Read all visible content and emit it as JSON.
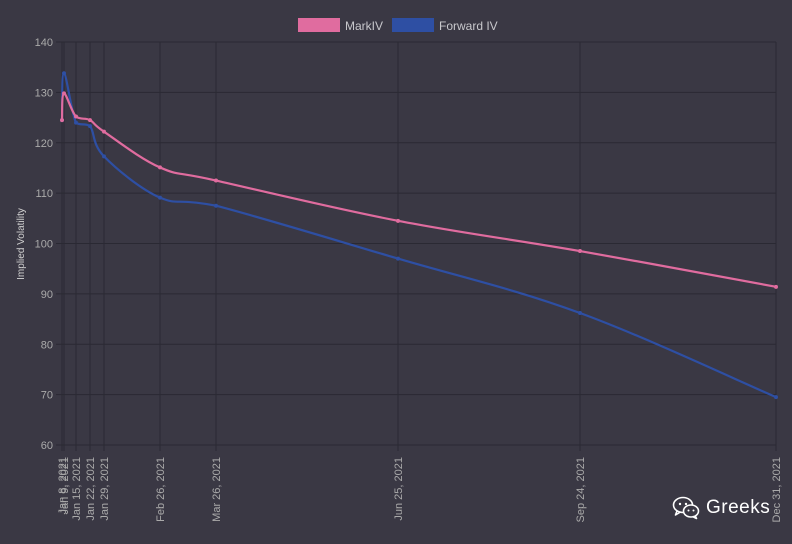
{
  "chart_data": {
    "type": "line",
    "title": "",
    "xlabel": "",
    "ylabel": "Implied Volatility",
    "ylim": [
      60,
      140
    ],
    "yticks": [
      60,
      70,
      80,
      90,
      100,
      110,
      120,
      130,
      140
    ],
    "grid": true,
    "legend_position": "top-center",
    "x": [
      "Jan 8, 2021",
      "Jan 9, 2021",
      "Jan 15, 2021",
      "Jan 22, 2021",
      "Jan 29, 2021",
      "Feb 26, 2021",
      "Mar 26, 2021",
      "Jun 25, 2021",
      "Sep 24, 2021",
      "Dec 31, 2021"
    ],
    "xtick_labels": [
      "Jan 8, 2021",
      "Jan 9, 2021",
      "Jan 15, 2021",
      "Jan 22, 2021",
      "Jan 29, 2021",
      "Feb 26, 2021",
      "Mar 26, 2021",
      "Jun 25, 2021",
      "Sep 24, 2021",
      "Dec 31, 2021"
    ],
    "series": [
      {
        "name": "MarkIV",
        "color": "#e06c9f",
        "values": [
          124.5,
          129.8,
          125.2,
          124.5,
          122.2,
          115.1,
          112.5,
          104.5,
          98.5,
          91.4
        ]
      },
      {
        "name": "Forward IV",
        "color": "#2e4fa3",
        "values": [
          124.5,
          133.8,
          124.0,
          123.3,
          117.3,
          109.1,
          107.5,
          97.0,
          86.2,
          69.5
        ]
      }
    ]
  },
  "watermark": {
    "text": "Greeks",
    "icon": "wechat-icon"
  },
  "colors": {
    "background": "#3a3844",
    "grid": "#2a2933",
    "tick_text": "#aaaaaa"
  }
}
